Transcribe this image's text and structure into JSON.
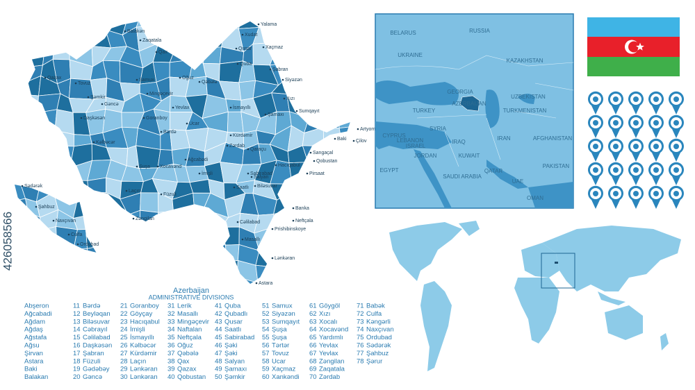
{
  "header": {
    "title": "Azerbaijan",
    "subtitle": "ADMINISTRATIVE DIVISIONS"
  },
  "watermark": "426058566",
  "divisions": [
    {
      "name": "Abşeron"
    },
    {
      "name": "Ağcabadi"
    },
    {
      "name": "Ağdam"
    },
    {
      "name": "Ağdaş"
    },
    {
      "name": "Ağstafa"
    },
    {
      "name": "Ağsu"
    },
    {
      "name": "Şirvan"
    },
    {
      "name": "Astara"
    },
    {
      "name": "Baki"
    },
    {
      "name": "Balakan"
    },
    {
      "number": 11,
      "name": "Bərdə"
    },
    {
      "number": 12,
      "name": "Beyləqan"
    },
    {
      "number": 13,
      "name": "Biləsuvar"
    },
    {
      "number": 14,
      "name": "Cəbrayıl"
    },
    {
      "number": 15,
      "name": "Cəlilabad"
    },
    {
      "number": 16,
      "name": "Daşkəsən"
    },
    {
      "number": 17,
      "name": "Şabran"
    },
    {
      "number": 18,
      "name": "Füzuli"
    },
    {
      "number": 19,
      "name": "Gədəbəy"
    },
    {
      "number": 20,
      "name": "Gəncə"
    },
    {
      "number": 21,
      "name": "Goranboy"
    },
    {
      "number": 22,
      "name": "Göyçay"
    },
    {
      "number": 23,
      "name": "Hacıqabul"
    },
    {
      "number": 24,
      "name": "İmişli"
    },
    {
      "number": 25,
      "name": "İsmayıllı"
    },
    {
      "number": 26,
      "name": "Kəlbəcər"
    },
    {
      "number": 27,
      "name": "Kürdəmir"
    },
    {
      "number": 28,
      "name": "Laçın"
    },
    {
      "number": 29,
      "name": "Lənkəran"
    },
    {
      "number": 30,
      "name": "Lənkəran"
    },
    {
      "number": 31,
      "name": "Lerik"
    },
    {
      "number": 32,
      "name": "Masallı"
    },
    {
      "number": 33,
      "name": "Mingəçevir"
    },
    {
      "number": 34,
      "name": "Naftalan"
    },
    {
      "number": 35,
      "name": "Neftçala"
    },
    {
      "number": 36,
      "name": "Oğuz"
    },
    {
      "number": 37,
      "name": "Qəbələ"
    },
    {
      "number": 38,
      "name": "Qax"
    },
    {
      "number": 39,
      "name": "Qazax"
    },
    {
      "number": 40,
      "name": "Qobustan"
    },
    {
      "number": 41,
      "name": "Quba"
    },
    {
      "number": 42,
      "name": "Qubadlı"
    },
    {
      "number": 43,
      "name": "Qusar"
    },
    {
      "number": 44,
      "name": "Saatlı"
    },
    {
      "number": 45,
      "name": "Sabirabad"
    },
    {
      "number": 46,
      "name": "Şəki"
    },
    {
      "number": 47,
      "name": "Şəki"
    },
    {
      "number": 48,
      "name": "Salyan"
    },
    {
      "number": 49,
      "name": "Şamaxı"
    },
    {
      "number": 50,
      "name": "Şəmkir"
    },
    {
      "number": 51,
      "name": "Samux"
    },
    {
      "number": 52,
      "name": "Siyəzən"
    },
    {
      "number": 53,
      "name": "Sumqayıt"
    },
    {
      "number": 54,
      "name": "Şuşa"
    },
    {
      "number": 55,
      "name": "Şuşa"
    },
    {
      "number": 56,
      "name": "Tərtər"
    },
    {
      "number": 57,
      "name": "Tovuz"
    },
    {
      "number": 58,
      "name": "Ucar"
    },
    {
      "number": 59,
      "name": "Xaçmaz"
    },
    {
      "number": 60,
      "name": "Xankəndi"
    },
    {
      "number": 61,
      "name": "Göygöl"
    },
    {
      "number": 62,
      "name": "Xızı"
    },
    {
      "number": 63,
      "name": "Xocalı"
    },
    {
      "number": 64,
      "name": "Xocavənd"
    },
    {
      "number": 65,
      "name": "Yardımlı"
    },
    {
      "number": 66,
      "name": "Yevlax"
    },
    {
      "number": 67,
      "name": "Yevlax"
    },
    {
      "number": 68,
      "name": "Zəngilan"
    },
    {
      "number": 69,
      "name": "Zaqatala"
    },
    {
      "number": 70,
      "name": "Zərdab"
    },
    {
      "number": 71,
      "name": "Babək"
    },
    {
      "number": 72,
      "name": "Culfa"
    },
    {
      "number": 73,
      "name": "Kəngərli"
    },
    {
      "number": 74,
      "name": "Naxçıvan"
    },
    {
      "number": 75,
      "name": "Ordubad"
    },
    {
      "number": 76,
      "name": "Sədərək"
    },
    {
      "number": 77,
      "name": "Şahbuz"
    },
    {
      "number": 78,
      "name": "Şərur"
    }
  ],
  "map_labels": [
    "Balakən",
    "Zaqatala",
    "Qax",
    "Oğuz",
    "Qəbələ",
    "Quba",
    "Qusar",
    "Xudat",
    "Xaçmaz",
    "Yalama",
    "Şabran",
    "Siyəzən",
    "Xızı",
    "Sumqayıt",
    "Artyom",
    "Baki",
    "Çilov",
    "Sangaçal",
    "Qobustan",
    "Pirsaat",
    "Hacıqabul",
    "Şamaxı",
    "İsmayıllı",
    "Kürdəmir",
    "Qaraçu",
    "Sabirabad",
    "Saatlı",
    "Ucar",
    "Zərdab",
    "Yevlax",
    "Mingəçevir",
    "Samux",
    "Gəncə",
    "Şəmkir",
    "Tovuz",
    "Qazax",
    "Daşkəsən",
    "Kəlbəcər",
    "Goranboy",
    "Bərdə",
    "Ağcabədi",
    "Xocavənd",
    "Şuşa",
    "Laçın",
    "Füzuli",
    "Zəngilan",
    "Biləsuvar",
    "Salyan",
    "Banka",
    "Neftçala",
    "Prishibinskoye",
    "Cəlilabad",
    "Masallı",
    "Lənkəran",
    "Astara",
    "Sədərək",
    "Şahbuz",
    "Naxçıvan",
    "Culfa",
    "Ordubad",
    "İmişli"
  ],
  "locator_labels": [
    "RUSSIA",
    "KAZAKHSTAN",
    "BELARUS",
    "UKRAINE",
    "GEORGIA",
    "TURKEY",
    "CYPRUS",
    "SYRIA",
    "LEBANON",
    "ISRAEL",
    "JORDAN",
    "IRAQ",
    "IRAN",
    "EGYPT",
    "SAUDI ARABIA",
    "KUWAIT",
    "QATAR",
    "UAE",
    "OMAN",
    "UZBEKISTAN",
    "TURKMENISTAN",
    "AFGHANISTAN",
    "PAKISTAN",
    "AZERBAIJAN"
  ]
}
